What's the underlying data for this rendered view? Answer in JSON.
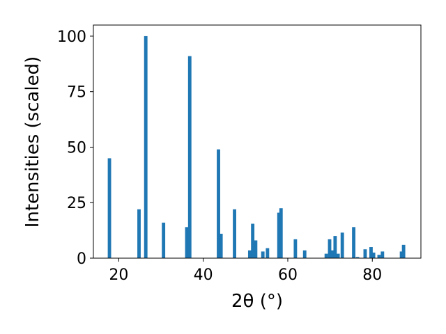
{
  "chart_data": {
    "type": "bar",
    "title": "",
    "xlabel": "2θ (°)",
    "ylabel": "Intensities (scaled)",
    "xlim": [
      14.0,
      91.5
    ],
    "ylim": [
      0,
      105
    ],
    "xticks": [
      20,
      40,
      60,
      80
    ],
    "yticks": [
      0,
      25,
      50,
      75,
      100
    ],
    "grid": false,
    "bar_color": "#1f77b4",
    "bar_width": 0.8,
    "x": [
      17.8,
      24.8,
      26.4,
      30.6,
      36.1,
      36.8,
      43.6,
      44.2,
      47.4,
      51.0,
      51.7,
      52.4,
      54.1,
      55.2,
      57.9,
      58.4,
      61.8,
      64.0,
      69.1,
      69.9,
      70.6,
      71.2,
      71.9,
      72.9,
      75.6,
      76.5,
      78.3,
      79.7,
      80.3,
      81.6,
      82.4,
      86.9,
      87.4
    ],
    "values": [
      45,
      22,
      100,
      16,
      14,
      91,
      49,
      11,
      22,
      3.5,
      15.5,
      8,
      3,
      4.5,
      20.5,
      22.5,
      8.5,
      3.5,
      2,
      8.5,
      3.5,
      10,
      2,
      11.5,
      14,
      0.5,
      4,
      5,
      2.5,
      1.5,
      3,
      3,
      6
    ]
  }
}
